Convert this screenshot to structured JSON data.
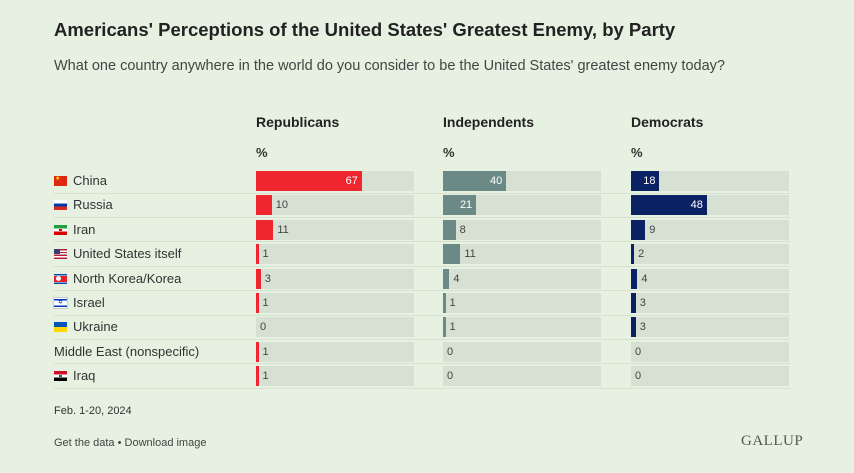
{
  "header": {
    "title": "Americans' Perceptions of the United States' Greatest Enemy, by Party",
    "subtitle": "What one country anywhere in the world do you consider to be the United States' greatest enemy today?"
  },
  "chart_data": {
    "type": "bar",
    "unit_label": "%",
    "categories": [
      "China",
      "Russia",
      "Iran",
      "United States itself",
      "North Korea/Korea",
      "Israel",
      "Ukraine",
      "Middle East (nonspecific)",
      "Iraq"
    ],
    "flags": [
      "china-flag-icon",
      "russia-flag-icon",
      "iran-flag-icon",
      "us-flag-icon",
      "north-korea-flag-icon",
      "israel-flag-icon",
      "ukraine-flag-icon",
      "",
      "iraq-flag-icon"
    ],
    "series": [
      {
        "name": "Republicans",
        "color": "#f0262f",
        "values": [
          67,
          10,
          11,
          1,
          3,
          1,
          0,
          1,
          1
        ]
      },
      {
        "name": "Independents",
        "color": "#6b8a85",
        "values": [
          40,
          21,
          8,
          11,
          4,
          1,
          1,
          0,
          0
        ]
      },
      {
        "name": "Democrats",
        "color": "#0a2164",
        "values": [
          18,
          48,
          9,
          2,
          4,
          3,
          3,
          0,
          0
        ]
      }
    ],
    "xlim": [
      0,
      100
    ]
  },
  "footer": {
    "date": "Feb. 1-20, 2024",
    "get_data": "Get the data",
    "separator": " • ",
    "download": "Download image",
    "logo": "GALLUP"
  }
}
